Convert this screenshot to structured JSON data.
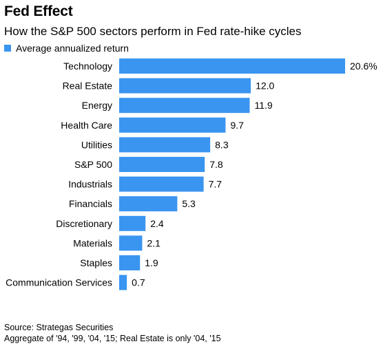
{
  "chart_data": {
    "type": "bar",
    "orientation": "horizontal",
    "title": "Fed Effect",
    "subtitle": "How the S&P 500 sectors perform in Fed rate-hike cycles",
    "legend": "Average annualized return",
    "categories": [
      "Technology",
      "Real Estate",
      "Energy",
      "Health Care",
      "Utilities",
      "S&P 500",
      "Industrials",
      "Financials",
      "Discretionary",
      "Materials",
      "Staples",
      "Communication Services"
    ],
    "values": [
      20.6,
      12.0,
      11.9,
      9.7,
      8.3,
      7.8,
      7.7,
      5.3,
      2.4,
      2.1,
      1.9,
      0.7
    ],
    "value_labels": [
      "20.6%",
      "12.0",
      "11.9",
      "9.7",
      "8.3",
      "7.8",
      "7.7",
      "5.3",
      "2.4",
      "2.1",
      "1.9",
      "0.7"
    ],
    "bar_color": "#3a95f0",
    "xlim": [
      0,
      20.6
    ]
  },
  "footer": {
    "source": "Source: Strategas Securities",
    "note": "Aggregate of '94, '99, '04, '15; Real Estate is only '04, '15"
  }
}
